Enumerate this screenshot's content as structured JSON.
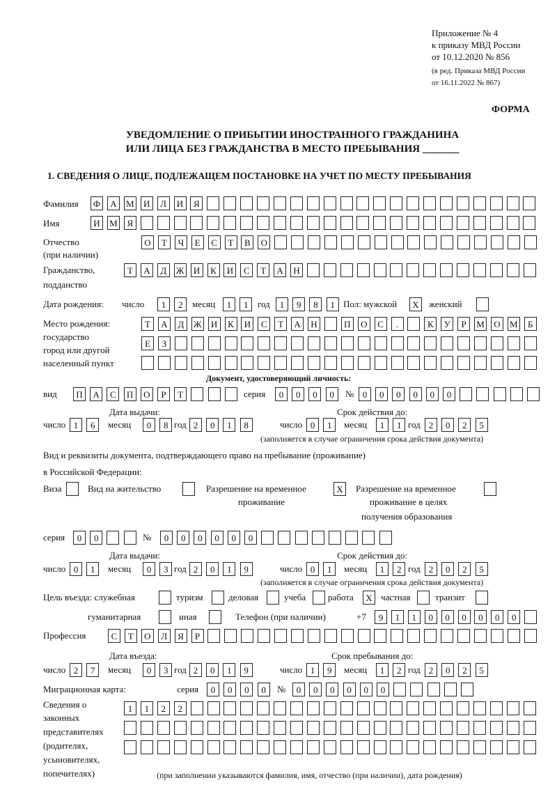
{
  "header": {
    "appendix": "Приложение № 4",
    "order": "к приказу МВД России",
    "order_date": "от 10.12.2020 № 856",
    "revision1": "(в ред. Приказа МВД России",
    "revision2": "от 16.11.2022 № 867)",
    "form_label": "ФОРМА",
    "title1": "УВЕДОМЛЕНИЕ О ПРИБЫТИИ ИНОСТРАННОГО ГРАЖДАНИНА",
    "title2": "ИЛИ ЛИЦА БЕЗ ГРАЖДАНСТВА В МЕСТО ПРЕБЫВАНИЯ _______",
    "section1": "1. СВЕДЕНИЯ О ЛИЦЕ, ПОДЛЕЖАЩЕМ ПОСТАНОВКЕ НА УЧЕТ ПО МЕСТУ ПРЕБЫВАНИЯ"
  },
  "labels": {
    "surname": "Фамилия",
    "name": "Имя",
    "patronymic": "Отчество",
    "patronymic_note": "(при наличии)",
    "citizenship": "Гражданство,",
    "citizenship2": "подданство",
    "birth_date": "Дата рождения:",
    "day": "число",
    "month": "месяц",
    "year": "год",
    "sex": "Пол: мужской",
    "female": "женский",
    "birthplace1": "Место рождения:",
    "birthplace2": "государство",
    "birthplace3": "город или другой",
    "birthplace4": "населенный пункт",
    "id_doc": "Документ, удостоверяющий личность:",
    "kind": "вид",
    "series": "серия",
    "number": "№",
    "issue_date": "Дата выдачи:",
    "valid_until": "Срок действия до:",
    "valid_note": "(заполняется в случае ограничения срока действия документа)",
    "stay_doc1": "Вид и реквизиты документа, подтверждающего право на пребывание (проживание)",
    "stay_doc2": "в Российской Федерации:",
    "visa": "Виза",
    "residence": "Вид на жительство",
    "trp1": "Разрешение на временное",
    "trp2": "проживание",
    "trpe1": "Разрешение на временное",
    "trpe2": "проживание в целях",
    "trpe3": "получения образования",
    "purpose": "Цель въезда: служебная",
    "tourism": "туризм",
    "business": "деловая",
    "study": "учеба",
    "work": "работа",
    "private": "частная",
    "transit": "транзит",
    "humanitarian": "гуманитарная",
    "other": "иная",
    "phone": "Телефон (при наличии)",
    "phone_prefix": "+7",
    "profession": "Профессия",
    "entry_date": "Дата въезда:",
    "stay_until": "Срок пребывания до:",
    "migration_card": "Миграционная карта:",
    "reps1": "Сведения о",
    "reps2": "законных",
    "reps3": "представителях",
    "reps4": "(родителях,",
    "reps5": "усыновителях,",
    "reps6": "попечителях)",
    "reps_note": "(при заполнении указываются фамилия, имя, отчество (при наличии), дата рождения)"
  },
  "fields": {
    "surname": "ФАМИЛИЯ",
    "name": "ИМЯ",
    "patronymic": "ОТЧЕСТВО",
    "citizenship": "ТАДЖИКИСТАН",
    "birth_day": "12",
    "birth_month": "11",
    "birth_year": "1981",
    "sex_male": "X",
    "sex_female": "",
    "birthplace_line1": "ТАДЖИКИСТАН ПОС. КУРМОМБ",
    "birthplace_line2": "ЕЗ",
    "birthplace_line3": "",
    "id_kind": "ПАСПОРТ",
    "id_series": "0000",
    "id_number": "000000",
    "id_issue_day": "16",
    "id_issue_month": "08",
    "id_issue_year": "2018",
    "id_valid_day": "01",
    "id_valid_month": "11",
    "id_valid_year": "2025",
    "visa": "",
    "residence_permit": "",
    "temp_residence": "X",
    "temp_residence_edu": "",
    "stay_series": "00",
    "stay_number": "000000",
    "stay_issue_day": "01",
    "stay_issue_month": "03",
    "stay_issue_year": "2019",
    "stay_valid_day": "01",
    "stay_valid_month": "12",
    "stay_valid_year": "2025",
    "purpose_official": "",
    "purpose_tourism": "",
    "purpose_business": "",
    "purpose_study": "",
    "purpose_work": "X",
    "purpose_private": "",
    "purpose_transit": "",
    "purpose_humanitarian": "",
    "purpose_other": "",
    "phone": "911000000",
    "profession": "СТОЛЯР",
    "entry_day": "27",
    "entry_month": "03",
    "entry_year": "2019",
    "stay_until_day": "19",
    "stay_until_month": "12",
    "stay_until_year": "2025",
    "mc_series": "0000",
    "mc_number": "000000",
    "reps_line1": "1122",
    "reps_line2": "",
    "reps_line3": ""
  }
}
